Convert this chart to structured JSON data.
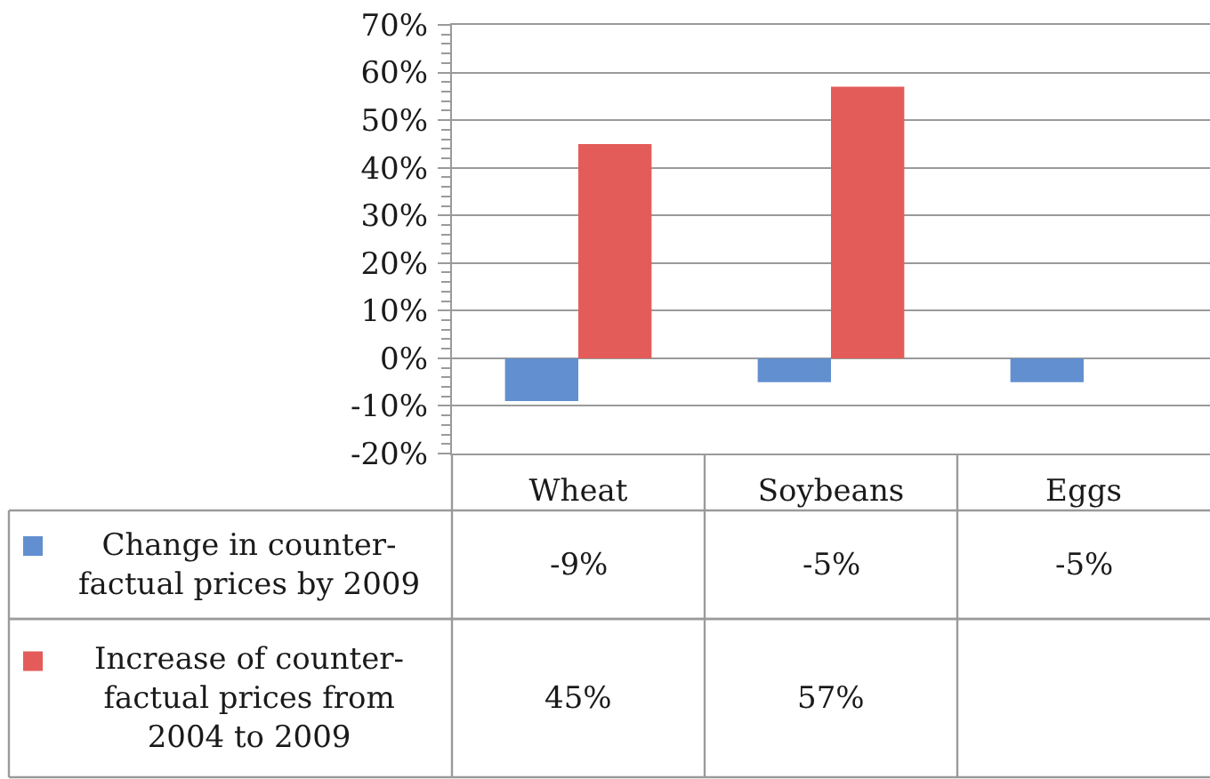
{
  "chart_data": {
    "type": "bar",
    "categories": [
      "Wheat",
      "Soybeans",
      "Eggs"
    ],
    "series": [
      {
        "name": "Change in counter-factual prices by 2009",
        "color": "#628fcf",
        "values": [
          -9,
          -5,
          -5
        ],
        "value_labels": [
          "-9%",
          "-5%",
          "-5%"
        ]
      },
      {
        "name": "Increase of counter-factual prices from 2004 to 2009",
        "color": "#e35c59",
        "values": [
          45,
          57,
          null
        ],
        "value_labels": [
          "45%",
          "57%",
          null
        ]
      }
    ],
    "ylim": [
      -20,
      70
    ],
    "yticks": [
      {
        "value": -20,
        "label": "-20%"
      },
      {
        "value": -18,
        "label": null
      },
      {
        "value": -16,
        "label": null
      },
      {
        "value": -14,
        "label": null
      },
      {
        "value": -12,
        "label": null
      },
      {
        "value": -10,
        "label": "-10%"
      },
      {
        "value": -8,
        "label": null
      },
      {
        "value": -6,
        "label": null
      },
      {
        "value": -4,
        "label": null
      },
      {
        "value": -2,
        "label": null
      },
      {
        "value": 0,
        "label": "0%"
      },
      {
        "value": 2,
        "label": null
      },
      {
        "value": 4,
        "label": null
      },
      {
        "value": 6,
        "label": null
      },
      {
        "value": 8,
        "label": null
      },
      {
        "value": 10,
        "label": "10%"
      },
      {
        "value": 12,
        "label": null
      },
      {
        "value": 14,
        "label": null
      },
      {
        "value": 16,
        "label": null
      },
      {
        "value": 18,
        "label": null
      },
      {
        "value": 20,
        "label": "20%"
      },
      {
        "value": 22,
        "label": null
      },
      {
        "value": 24,
        "label": null
      },
      {
        "value": 26,
        "label": null
      },
      {
        "value": 28,
        "label": null
      },
      {
        "value": 30,
        "label": "30%"
      },
      {
        "value": 32,
        "label": null
      },
      {
        "value": 34,
        "label": null
      },
      {
        "value": 36,
        "label": null
      },
      {
        "value": 38,
        "label": null
      },
      {
        "value": 40,
        "label": "40%"
      },
      {
        "value": 42,
        "label": null
      },
      {
        "value": 44,
        "label": null
      },
      {
        "value": 46,
        "label": null
      },
      {
        "value": 48,
        "label": null
      },
      {
        "value": 50,
        "label": "50%"
      },
      {
        "value": 52,
        "label": null
      },
      {
        "value": 54,
        "label": null
      },
      {
        "value": 56,
        "label": null
      },
      {
        "value": 58,
        "label": null
      },
      {
        "value": 60,
        "label": "60%"
      },
      {
        "value": 62,
        "label": null
      },
      {
        "value": 64,
        "label": null
      },
      {
        "value": 66,
        "label": null
      },
      {
        "value": 68,
        "label": null
      },
      {
        "value": 70,
        "label": "70%"
      }
    ],
    "grid": "y",
    "legend": "bottom left"
  }
}
